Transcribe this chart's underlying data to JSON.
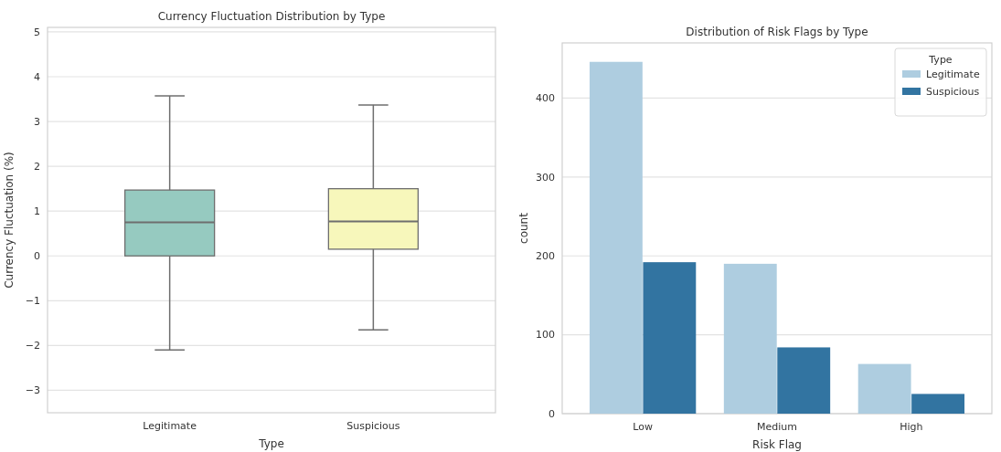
{
  "chart_data": [
    {
      "type": "box",
      "title": "Currency Fluctuation Distribution by Type",
      "xlabel": "Type",
      "ylabel": "Currency Fluctuation (%)",
      "categories": [
        "Legitimate",
        "Suspicious"
      ],
      "colors": [
        "#96cac0",
        "#f7f7bb"
      ],
      "boxes": [
        {
          "low": -2.1,
          "q1": 0.0,
          "median": 0.75,
          "q3": 1.47,
          "high": 3.57
        },
        {
          "low": -1.65,
          "q1": 0.15,
          "median": 0.77,
          "q3": 1.5,
          "high": 3.37
        }
      ],
      "ylim": [
        -3.5,
        5.1
      ],
      "yticks": [
        -3,
        -2,
        -1,
        0,
        1,
        2,
        3,
        4,
        5
      ],
      "grid": "y"
    },
    {
      "type": "bar",
      "title": "Distribution of Risk Flags by Type",
      "xlabel": "Risk Flag",
      "ylabel": "count",
      "legend_title": "Type",
      "legend": "top right",
      "categories": [
        "Low",
        "Medium",
        "High"
      ],
      "series": [
        {
          "name": "Legitimate",
          "color": "#aecde0",
          "values": [
            446,
            190,
            63
          ]
        },
        {
          "name": "Suspicious",
          "color": "#3274a1",
          "values": [
            192,
            84,
            25
          ]
        }
      ],
      "ylim": [
        0,
        470
      ],
      "yticks": [
        0,
        100,
        200,
        300,
        400
      ],
      "grid": "y"
    }
  ]
}
